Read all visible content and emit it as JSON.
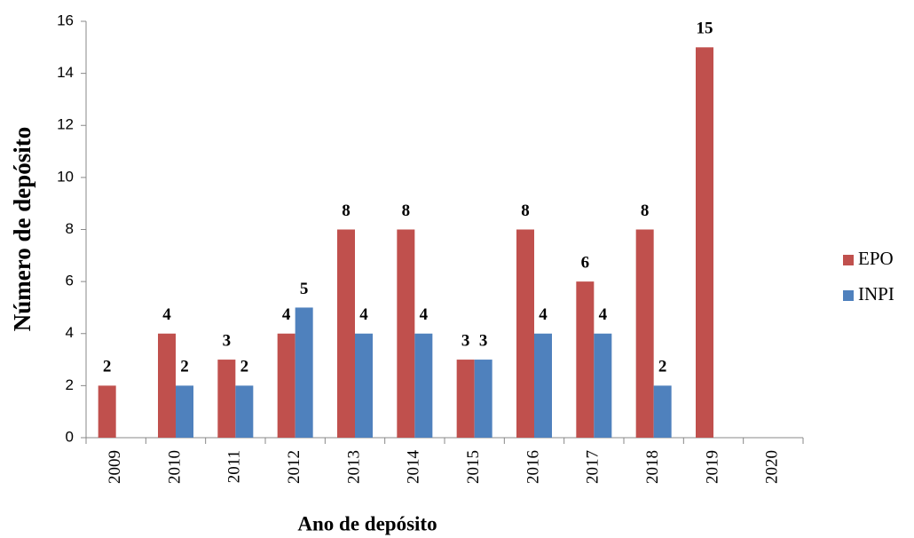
{
  "chart_data": {
    "type": "bar",
    "xlabel": "Ano de depósito",
    "ylabel": "Número de depósito",
    "categories": [
      "2009",
      "2010",
      "2011",
      "2012",
      "2013",
      "2014",
      "2015",
      "2016",
      "2017",
      "2018",
      "2019",
      "2020"
    ],
    "series": [
      {
        "name": "EPO",
        "color": "#c0504d",
        "values": [
          2,
          4,
          3,
          4,
          8,
          8,
          3,
          8,
          6,
          8,
          15,
          null
        ]
      },
      {
        "name": "INPI",
        "color": "#4f81bd",
        "values": [
          null,
          2,
          2,
          5,
          4,
          4,
          3,
          4,
          4,
          2,
          null,
          null
        ]
      }
    ],
    "ylim": [
      0,
      16
    ],
    "yticks": [
      0,
      2,
      4,
      6,
      8,
      10,
      12,
      14,
      16
    ],
    "grid": false,
    "legend": "right",
    "data_labels": true
  }
}
